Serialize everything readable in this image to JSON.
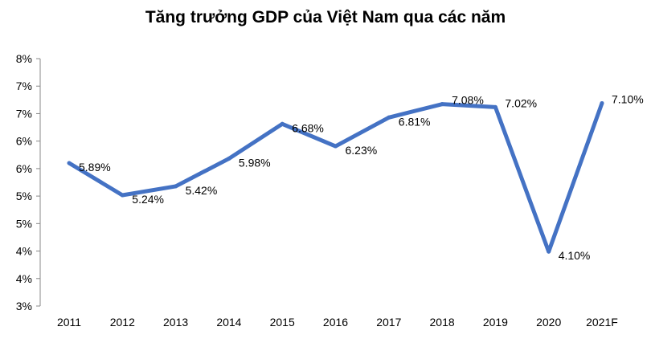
{
  "chart_data": {
    "type": "line",
    "title": "Tăng trưởng GDP của Việt Nam qua các năm",
    "categories": [
      "2011",
      "2012",
      "2013",
      "2014",
      "2015",
      "2016",
      "2017",
      "2018",
      "2019",
      "2020",
      "2021F"
    ],
    "values": [
      5.89,
      5.24,
      5.42,
      5.98,
      6.68,
      6.23,
      6.81,
      7.08,
      7.02,
      4.1,
      7.1
    ],
    "data_labels": [
      "5.89%",
      "5.24%",
      "5.42%",
      "5.98%",
      "6.68%",
      "6.23%",
      "6.81%",
      "7.08%",
      "7.02%",
      "4.10%",
      "7.10%"
    ],
    "y_tick_labels": [
      "8%",
      "7%",
      "7%",
      "6%",
      "6%",
      "5%",
      "5%",
      "4%",
      "4%",
      "3%"
    ],
    "ylim": [
      3,
      8
    ],
    "xlabel": "",
    "ylabel": "",
    "grid": false,
    "legend": "none",
    "line_color": "#4472C4"
  }
}
